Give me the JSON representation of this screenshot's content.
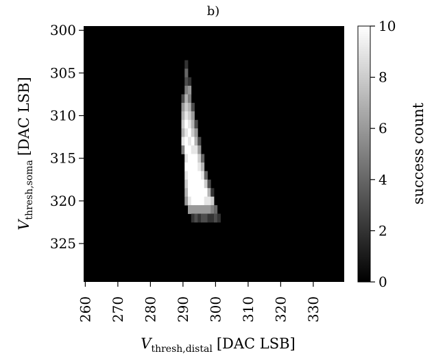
{
  "chart_data": {
    "type": "heatmap",
    "title": "b)",
    "xlabel": {
      "main": "V",
      "sub": "thresh,distal",
      "unit": "[DAC LSB]"
    },
    "ylabel": {
      "main": "V",
      "sub": "thresh,soma",
      "unit": "[DAC LSB]"
    },
    "x_ticks": [
      "260",
      "270",
      "280",
      "290",
      "300",
      "310",
      "320",
      "330"
    ],
    "y_ticks": [
      "300",
      "305",
      "310",
      "315",
      "320",
      "325"
    ],
    "xlim": [
      259.5,
      339.5
    ],
    "ylim_top_to_bottom": [
      299.5,
      329.5
    ],
    "colorbar": {
      "label": "success count",
      "ticks": [
        "0",
        "2",
        "4",
        "6",
        "8",
        "10"
      ],
      "range": [
        0,
        10
      ],
      "colormap": "gray"
    },
    "background_value": 0,
    "cells": [
      [
        291,
        304,
        2
      ],
      [
        291,
        305,
        4
      ],
      [
        291,
        306,
        3
      ],
      [
        292,
        306,
        2
      ],
      [
        291,
        307,
        5
      ],
      [
        292,
        307,
        6
      ],
      [
        290,
        308,
        3
      ],
      [
        291,
        308,
        7
      ],
      [
        292,
        308,
        5
      ],
      [
        290,
        309,
        6
      ],
      [
        291,
        309,
        8
      ],
      [
        292,
        309,
        7
      ],
      [
        293,
        309,
        3
      ],
      [
        290,
        310,
        7
      ],
      [
        291,
        310,
        9
      ],
      [
        292,
        310,
        8
      ],
      [
        293,
        310,
        6
      ],
      [
        290,
        311,
        8
      ],
      [
        291,
        311,
        10
      ],
      [
        292,
        311,
        9
      ],
      [
        293,
        311,
        7
      ],
      [
        294,
        311,
        3
      ],
      [
        290,
        312,
        7
      ],
      [
        291,
        312,
        9
      ],
      [
        292,
        312,
        10
      ],
      [
        293,
        312,
        8
      ],
      [
        294,
        312,
        6
      ],
      [
        290,
        313,
        9
      ],
      [
        291,
        313,
        10
      ],
      [
        292,
        313,
        9
      ],
      [
        293,
        313,
        10
      ],
      [
        294,
        313,
        7
      ],
      [
        295,
        313,
        3
      ],
      [
        290,
        314,
        5
      ],
      [
        291,
        314,
        10
      ],
      [
        292,
        314,
        10
      ],
      [
        293,
        314,
        9
      ],
      [
        294,
        314,
        9
      ],
      [
        295,
        314,
        6
      ],
      [
        291,
        315,
        9
      ],
      [
        292,
        315,
        10
      ],
      [
        293,
        315,
        10
      ],
      [
        294,
        315,
        10
      ],
      [
        295,
        315,
        8
      ],
      [
        296,
        315,
        4
      ],
      [
        291,
        316,
        10
      ],
      [
        292,
        316,
        10
      ],
      [
        293,
        316,
        10
      ],
      [
        294,
        316,
        10
      ],
      [
        295,
        316,
        9
      ],
      [
        296,
        316,
        7
      ],
      [
        291,
        317,
        9
      ],
      [
        292,
        317,
        10
      ],
      [
        293,
        317,
        10
      ],
      [
        294,
        317,
        10
      ],
      [
        295,
        317,
        10
      ],
      [
        296,
        317,
        9
      ],
      [
        297,
        317,
        4
      ],
      [
        291,
        318,
        8
      ],
      [
        292,
        318,
        10
      ],
      [
        293,
        318,
        10
      ],
      [
        294,
        318,
        10
      ],
      [
        295,
        318,
        10
      ],
      [
        296,
        318,
        10
      ],
      [
        297,
        318,
        8
      ],
      [
        298,
        318,
        3
      ],
      [
        291,
        319,
        7
      ],
      [
        292,
        319,
        10
      ],
      [
        293,
        319,
        10
      ],
      [
        294,
        319,
        10
      ],
      [
        295,
        319,
        10
      ],
      [
        296,
        319,
        10
      ],
      [
        297,
        319,
        10
      ],
      [
        298,
        319,
        7
      ],
      [
        299,
        319,
        2
      ],
      [
        291,
        320,
        6
      ],
      [
        292,
        320,
        9
      ],
      [
        293,
        320,
        10
      ],
      [
        294,
        320,
        10
      ],
      [
        295,
        320,
        10
      ],
      [
        296,
        320,
        10
      ],
      [
        297,
        320,
        9
      ],
      [
        298,
        320,
        9
      ],
      [
        299,
        320,
        8
      ],
      [
        292,
        321,
        6
      ],
      [
        293,
        321,
        6
      ],
      [
        294,
        321,
        6
      ],
      [
        295,
        321,
        6
      ],
      [
        296,
        321,
        6
      ],
      [
        297,
        321,
        6
      ],
      [
        298,
        321,
        6
      ],
      [
        299,
        321,
        5
      ],
      [
        300,
        321,
        4
      ],
      [
        293,
        322,
        2
      ],
      [
        294,
        322,
        3
      ],
      [
        295,
        322,
        2
      ],
      [
        296,
        322,
        3
      ],
      [
        297,
        322,
        3
      ],
      [
        298,
        322,
        2
      ],
      [
        299,
        322,
        2
      ],
      [
        300,
        322,
        3
      ],
      [
        301,
        322,
        2
      ]
    ]
  }
}
